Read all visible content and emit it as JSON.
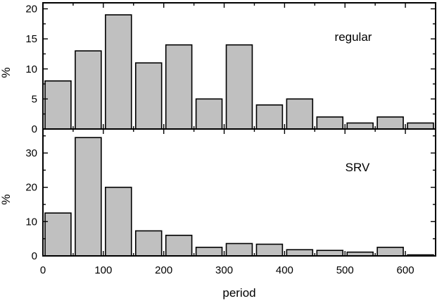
{
  "chart_data": {
    "type": "bar",
    "xlabel": "period",
    "xlim": [
      0,
      650
    ],
    "x_ticks": [
      0,
      100,
      200,
      300,
      400,
      500,
      600
    ],
    "bin_width": 50,
    "bin_starts": [
      0,
      50,
      100,
      150,
      200,
      250,
      300,
      350,
      400,
      450,
      500,
      550,
      600
    ],
    "grid": false,
    "panels": [
      {
        "label": "regular",
        "ylabel": "%",
        "ylim": [
          0,
          21
        ],
        "y_ticks": [
          0,
          5,
          10,
          15,
          20
        ],
        "values": [
          8,
          13,
          19,
          11,
          14,
          5,
          14,
          4,
          5,
          2,
          1,
          2,
          1
        ]
      },
      {
        "label": "SRV",
        "ylabel": "%",
        "ylim": [
          0,
          37
        ],
        "y_ticks": [
          0,
          10,
          20,
          30
        ],
        "values": [
          12.5,
          34.5,
          20,
          7.3,
          6,
          2.5,
          3.6,
          3.4,
          1.8,
          1.6,
          1.1,
          2.5,
          0.3
        ]
      }
    ]
  }
}
